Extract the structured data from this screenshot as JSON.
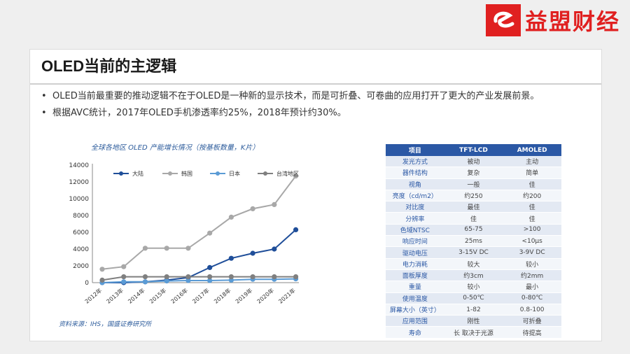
{
  "brand": {
    "name": "益盟财经",
    "color": "#e02020"
  },
  "slide": {
    "title": "OLED当前的主逻辑",
    "bullets": [
      "OLED当前最重要的推动逻辑不在于OLED是一种新的显示技术，而是可折叠、可卷曲的应用打开了更大的产业发展前景。",
      "根据AVC统计，2017年OLED手机渗透率约25%，2018年预计约30%。"
    ]
  },
  "chart": {
    "title": "全球各地区 OLED 产能增长情况（按基板数量，K片）",
    "source": "资料来源：IHS，国盛证券研究所"
  },
  "chart_data": {
    "type": "line",
    "title": "全球各地区 OLED 产能增长情况（按基板数量，K片）",
    "categories": [
      "2012年",
      "2013年",
      "2014年",
      "2015年",
      "2016年",
      "2017年",
      "2018年",
      "2019年",
      "2020年",
      "2021年"
    ],
    "y_ticks": [
      "0",
      "2000",
      "4000",
      "6000",
      "8000",
      "10000",
      "12000",
      "14000"
    ],
    "ylim": [
      0,
      14000
    ],
    "legend_position": "top",
    "grid": false,
    "series": [
      {
        "name": "大陆",
        "color": "#1f4e99",
        "values": [
          0,
          0,
          100,
          300,
          600,
          1800,
          2900,
          3500,
          4000,
          6300
        ]
      },
      {
        "name": "韩国",
        "color": "#a8a8a8",
        "values": [
          1600,
          1900,
          4100,
          4100,
          4100,
          5900,
          7800,
          8800,
          9300,
          12700
        ]
      },
      {
        "name": "日本",
        "color": "#5b9bd5",
        "values": [
          0,
          100,
          100,
          200,
          250,
          250,
          300,
          400,
          400,
          450
        ]
      },
      {
        "name": "台湾地区",
        "color": "#7f7f7f",
        "values": [
          300,
          700,
          700,
          700,
          700,
          700,
          700,
          700,
          700,
          700
        ]
      }
    ]
  },
  "compare_table": {
    "headers": [
      "项目",
      "TFT-LCD",
      "AMOLED"
    ],
    "rows": [
      [
        "发光方式",
        "被动",
        "主动"
      ],
      [
        "器件结构",
        "复杂",
        "简单"
      ],
      [
        "视角",
        "一般",
        "佳"
      ],
      [
        "亮度（cd/m2）",
        "约250",
        "约200"
      ],
      [
        "对比度",
        "最佳",
        "佳"
      ],
      [
        "分辨率",
        "佳",
        "佳"
      ],
      [
        "色域NTSC",
        "65-75",
        ">100"
      ],
      [
        "响应时间",
        "25ms",
        "<10μs"
      ],
      [
        "驱动电压",
        "3-15V DC",
        "3-9V DC"
      ],
      [
        "电力消耗",
        "较大",
        "较小"
      ],
      [
        "面板厚度",
        "约3cm",
        "约2mm"
      ],
      [
        "重量",
        "较小",
        "最小"
      ],
      [
        "使用温度",
        "0-50℃",
        "0-80℃"
      ],
      [
        "屏幕大小（英寸）",
        "1-82",
        "0.8-100"
      ],
      [
        "应用范围",
        "刚性",
        "可折叠"
      ],
      [
        "寿命",
        "长 取决于光源",
        "待提高"
      ]
    ]
  }
}
